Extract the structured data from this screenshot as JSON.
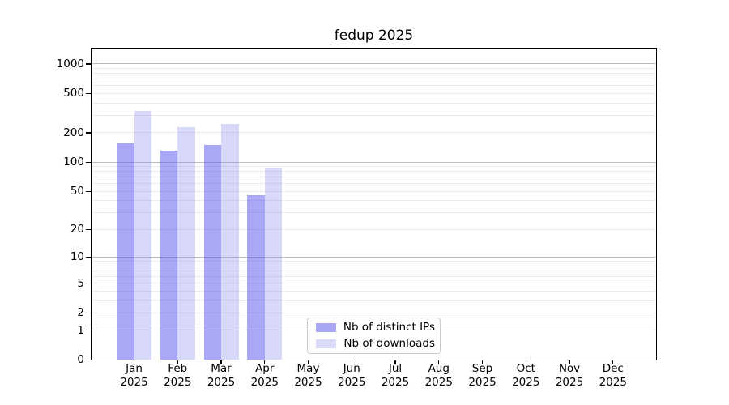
{
  "chart_data": {
    "type": "bar",
    "title": "fedup 2025",
    "categories": [
      "Jan",
      "Feb",
      "Mar",
      "Apr",
      "May",
      "Jun",
      "Jul",
      "Aug",
      "Sep",
      "Oct",
      "Nov",
      "Dec"
    ],
    "x_tick_second_line": "2025",
    "y_scale": "log1p",
    "y_ticks": [
      0,
      1,
      2,
      5,
      10,
      20,
      50,
      100,
      200,
      500,
      1000
    ],
    "y_major_gridlines": [
      1,
      10,
      100,
      1000
    ],
    "ylim": [
      0,
      1440
    ],
    "grid": "horizontal",
    "legend_position": "lower-center-left",
    "series": [
      {
        "name": "Nb of distinct IPs",
        "color": "#a7a7f3",
        "bar_fill": "rgba(97,97,240,0.55)",
        "values": [
          153,
          129,
          148,
          45,
          0,
          0,
          0,
          0,
          0,
          0,
          0,
          0
        ]
      },
      {
        "name": "Nb of downloads",
        "color": "#d9d9f8",
        "bar_fill": "rgba(143,143,241,0.35)",
        "values": [
          328,
          225,
          244,
          85,
          0,
          0,
          0,
          0,
          0,
          0,
          0,
          0
        ]
      }
    ],
    "grid_major_color": "#bdbdbd",
    "grid_minor_color": "#ececec"
  }
}
